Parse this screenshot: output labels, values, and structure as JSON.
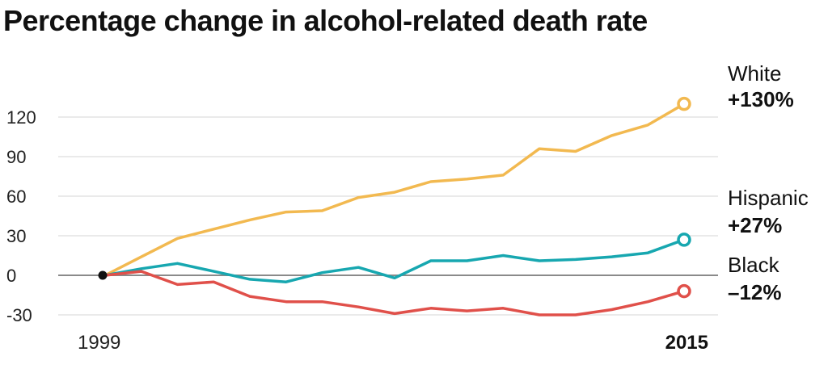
{
  "title": "Percentage change in alcohol-related death rate",
  "chart_data": {
    "type": "line",
    "title": "Percentage change in alcohol-related death rate",
    "xlabel": "",
    "ylabel": "",
    "x": [
      1999,
      2000,
      2001,
      2002,
      2003,
      2004,
      2005,
      2006,
      2007,
      2008,
      2009,
      2010,
      2011,
      2012,
      2013,
      2014,
      2015
    ],
    "x_tick_labels": [
      "1999",
      "2015"
    ],
    "y_ticks": [
      120,
      90,
      60,
      30,
      0,
      -30
    ],
    "y_tick_labels": [
      "120",
      "90",
      "60",
      "30",
      "0",
      "-30"
    ],
    "ylim": [
      -35,
      135
    ],
    "grid": "horizontal",
    "series": [
      {
        "name": "White",
        "end_label": "+130%",
        "color": "#f2b950",
        "values": [
          0,
          14,
          28,
          35,
          42,
          48,
          49,
          59,
          63,
          71,
          73,
          76,
          96,
          94,
          106,
          114,
          130
        ]
      },
      {
        "name": "Hispanic",
        "end_label": "+27%",
        "color": "#17a7b0",
        "values": [
          0,
          5,
          9,
          3,
          -3,
          -5,
          2,
          6,
          -2,
          11,
          11,
          15,
          11,
          12,
          14,
          17,
          27
        ]
      },
      {
        "name": "Black",
        "end_label": "–12%",
        "color": "#e0504a",
        "values": [
          0,
          3,
          -7,
          -5,
          -16,
          -20,
          -20,
          -24,
          -29,
          -25,
          -27,
          -25,
          -30,
          -30,
          -26,
          -20,
          -12
        ]
      }
    ]
  }
}
